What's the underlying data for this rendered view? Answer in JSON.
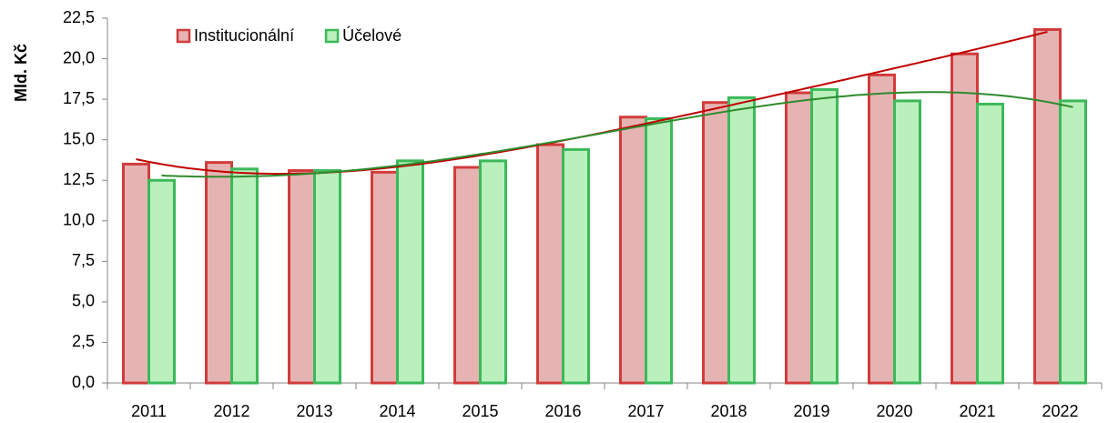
{
  "chart_data": {
    "type": "bar",
    "y_label": "Mld. Kč",
    "categories": [
      "2011",
      "2012",
      "2013",
      "2014",
      "2015",
      "2016",
      "2017",
      "2018",
      "2019",
      "2020",
      "2021",
      "2022"
    ],
    "series": [
      {
        "name": "Institucionální",
        "color": "#e6b3b3",
        "edge": "#d23c3c",
        "trend_color": "#c00000",
        "values": [
          13.5,
          13.6,
          13.1,
          13.0,
          13.3,
          14.7,
          16.4,
          17.3,
          17.9,
          19.0,
          20.3,
          21.8
        ]
      },
      {
        "name": "Účelové",
        "color": "#b9f0bb",
        "edge": "#3cb95a",
        "trend_color": "#2e8b2e",
        "values": [
          12.5,
          13.2,
          13.1,
          13.7,
          13.7,
          14.4,
          16.3,
          17.6,
          18.1,
          17.4,
          17.2,
          17.4
        ]
      }
    ],
    "ylim": [
      0,
      22.5
    ],
    "yticks": [
      {
        "value": 0,
        "label": "0,0"
      },
      {
        "value": 2.5,
        "label": "2,5"
      },
      {
        "value": 5,
        "label": "5,0"
      },
      {
        "value": 7.5,
        "label": "7,5"
      },
      {
        "value": 10,
        "label": "10,0"
      },
      {
        "value": 12.5,
        "label": "12,5"
      },
      {
        "value": 15,
        "label": "15,0"
      },
      {
        "value": 17.5,
        "label": "17,5"
      },
      {
        "value": 20,
        "label": "20,0"
      },
      {
        "value": 22.5,
        "label": "22,5"
      }
    ],
    "grid": false,
    "legend": "top-left",
    "trendline": true
  }
}
